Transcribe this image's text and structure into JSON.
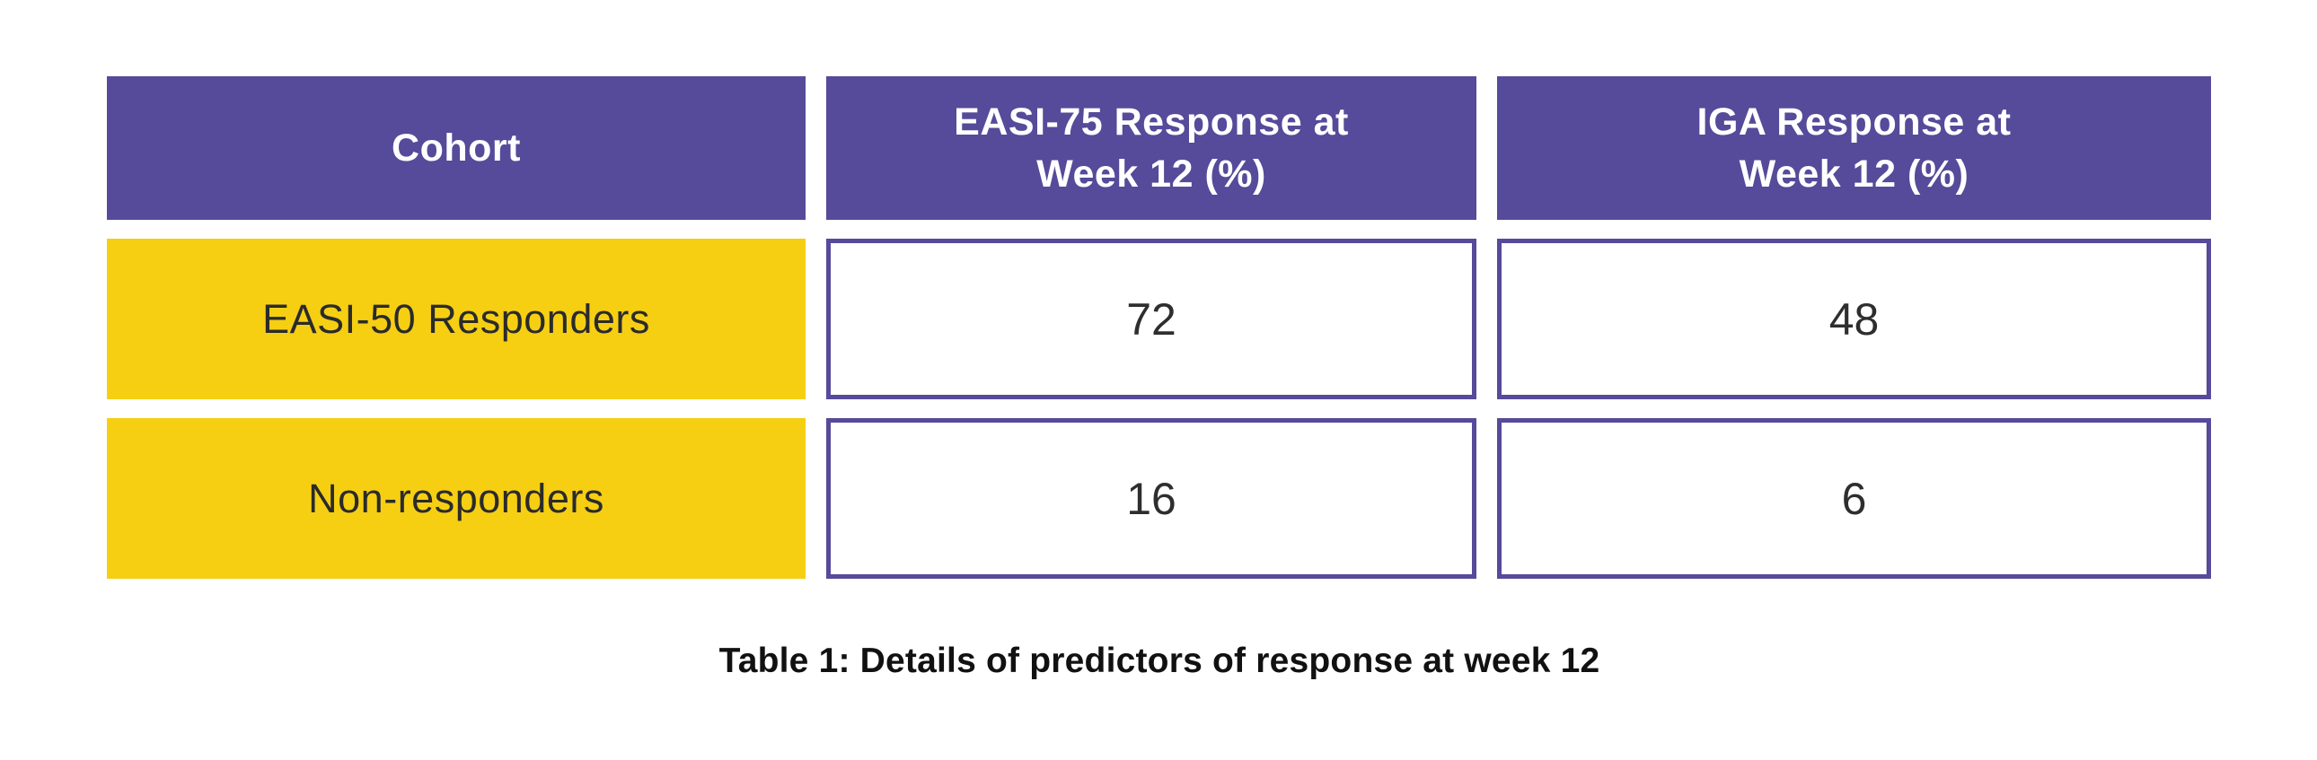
{
  "table": {
    "header": {
      "cohort": "Cohort",
      "easi75": "EASI-75 Response at\nWeek 12 (%)",
      "iga": "IGA Response at\nWeek 12 (%)"
    },
    "rows": [
      {
        "cohort": "EASI-50 Responders",
        "easi75": "72",
        "iga": "48"
      },
      {
        "cohort": "Non-responders",
        "easi75": "16",
        "iga": "6"
      }
    ],
    "caption": "Table 1: Details of predictors of response at week 12"
  },
  "colors": {
    "header_bg": "#564a9a",
    "header_text": "#ffffff",
    "row_label_bg": "#f6cf13",
    "value_cell_border": "#564a9a",
    "body_text": "#2e2e2e",
    "caption_text": "#111111",
    "background": "#ffffff"
  },
  "chart_data": {
    "type": "table",
    "title": "Table 1: Details of predictors of response at week 12",
    "columns": [
      "Cohort",
      "EASI-75 Response at Week 12 (%)",
      "IGA Response at Week 12 (%)"
    ],
    "rows": [
      [
        "EASI-50 Responders",
        72,
        48
      ],
      [
        "Non-responders",
        16,
        6
      ]
    ]
  }
}
